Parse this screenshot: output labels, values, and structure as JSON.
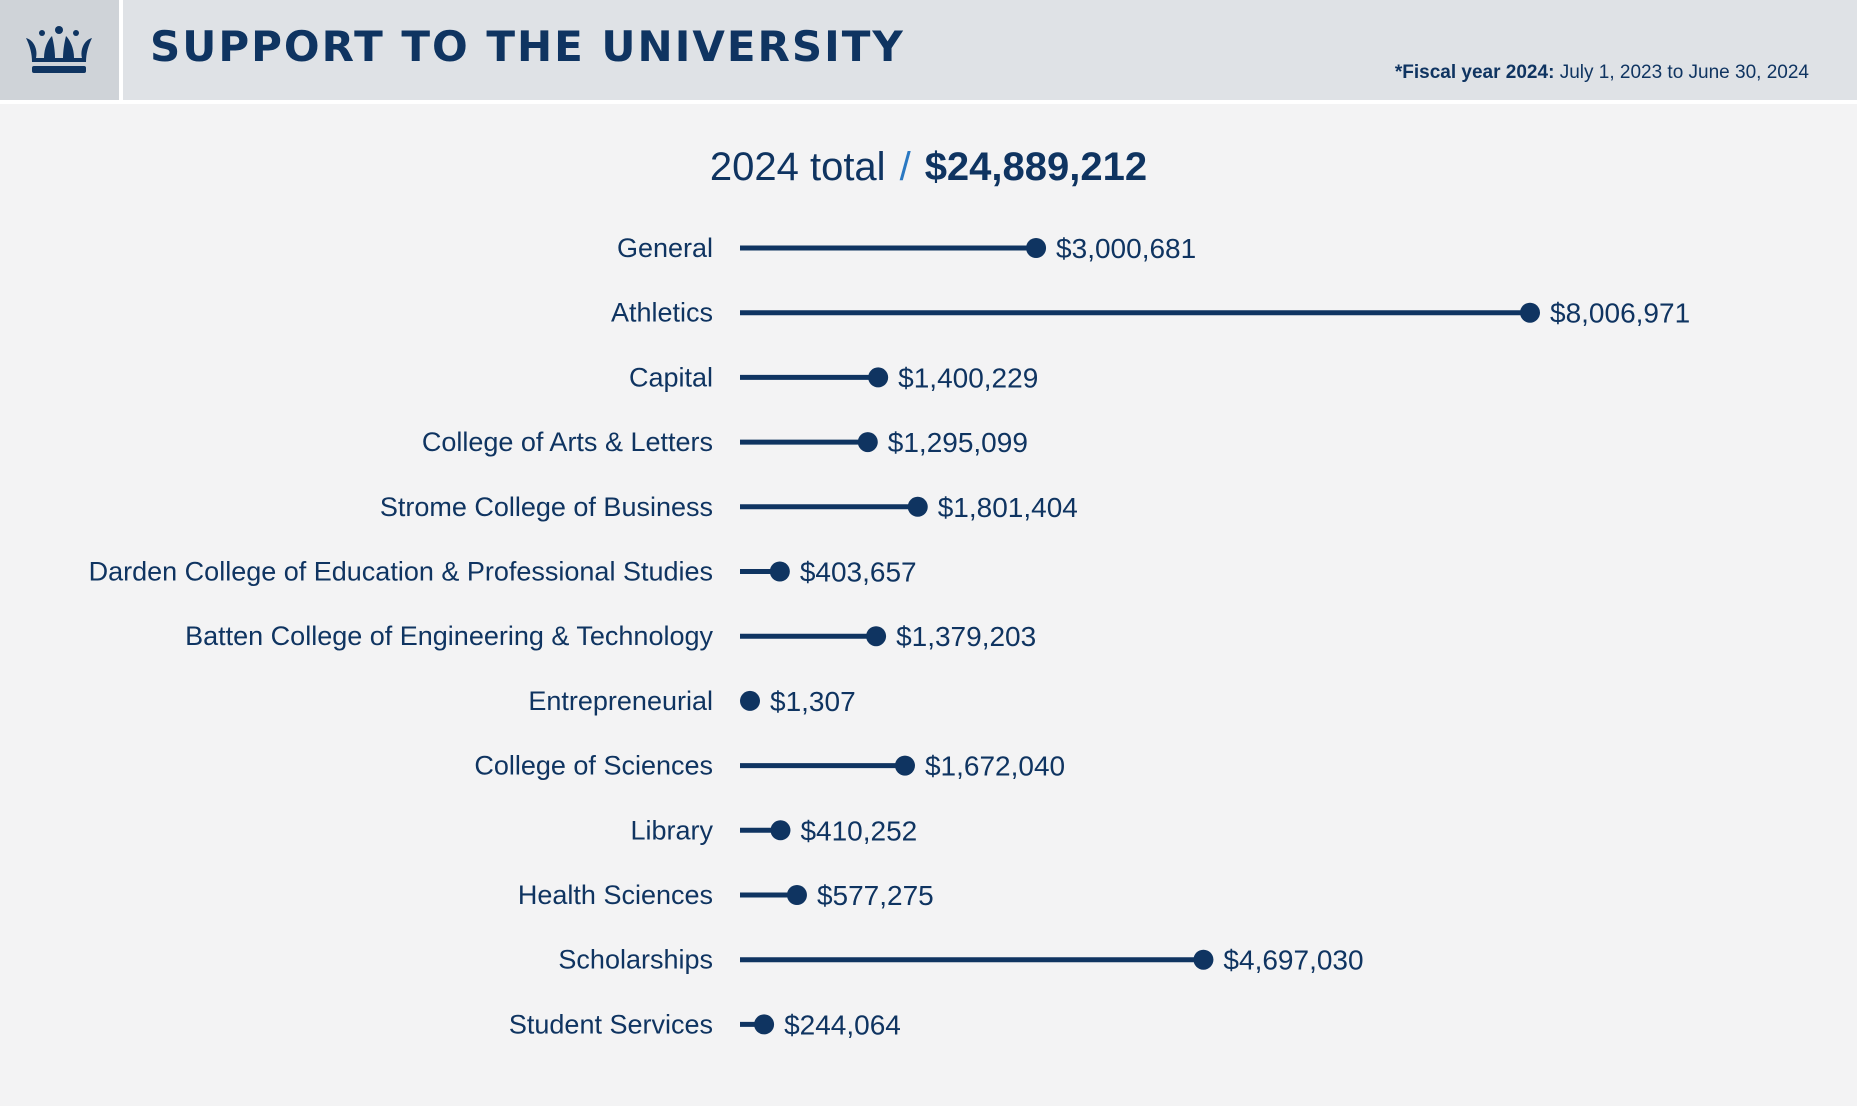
{
  "header": {
    "title": "SUPPORT TO THE UNIVERSITY",
    "note_bold": "*Fiscal year 2024:",
    "note_rest": "July 1, 2023 to June 30, 2024",
    "logo": "crown-icon"
  },
  "total": {
    "label": "2024 total",
    "separator": "/",
    "amount": "$24,889,212"
  },
  "colors": {
    "primary": "#0f3461",
    "accent": "#2a78c2",
    "background": "#f3f3f4",
    "header": "#dfe2e6"
  },
  "chart_data": {
    "type": "bar",
    "style": "lollipop-horizontal",
    "categories": [
      "General",
      "Athletics",
      "Capital",
      "College of Arts & Letters",
      "Strome College of Business",
      "Darden College of Education & Professional Studies",
      "Batten College of Engineering & Technology",
      "Entrepreneurial",
      "College of Sciences",
      "Library",
      "Health Sciences",
      "Scholarships",
      "Student Services"
    ],
    "values": [
      3000681,
      8006971,
      1400229,
      1295099,
      1801404,
      403657,
      1379203,
      1307,
      1672040,
      410252,
      577275,
      4697030,
      244064
    ],
    "value_labels": [
      "$3,000,681",
      "$8,006,971",
      "$1,400,229",
      "$1,295,099",
      "$1,801,404",
      "$403,657",
      "$1,379,203",
      "$1,307",
      "$1,672,040",
      "$410,252",
      "$577,275",
      "$4,697,030",
      "$244,064"
    ],
    "xlim": [
      0,
      8006971
    ],
    "grid": false
  }
}
